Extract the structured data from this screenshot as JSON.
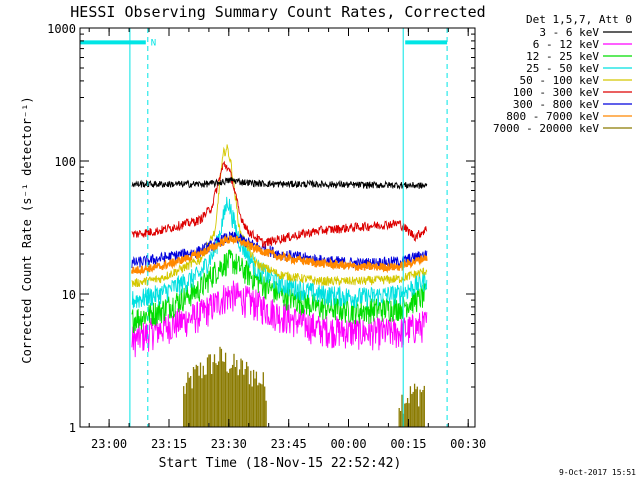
{
  "figure": {
    "title": "HESSI Observing Summary Count Rates, Corrected",
    "footer_date": "9-Oct-2017 15:51"
  },
  "chart_data": {
    "type": "line",
    "title": "HESSI Observing Summary Count Rates, Corrected",
    "xlabel": "Start Time (18-Nov-15 22:52:42)",
    "ylabel": "Corrected Count Rate (s⁻¹ detector⁻¹)",
    "y_scale": "log",
    "ylim": [
      1,
      1000
    ],
    "xlim_minutes_from_start": [
      0,
      99
    ],
    "x_tick_labels": [
      "23:00",
      "23:15",
      "23:30",
      "23:45",
      "00:00",
      "00:15",
      "00:30"
    ],
    "x_tick_minutes_from_start": [
      7.3,
      22.3,
      37.3,
      52.3,
      67.3,
      82.3,
      97.3
    ],
    "y_tick_labels": [
      "1",
      "10",
      "100",
      "1000"
    ],
    "y_tick_values": [
      1,
      10,
      100,
      1000
    ],
    "legend_header": "Det 1,5,7, Att 0",
    "legend_placement": "right",
    "grid": false,
    "series": [
      {
        "name": "3 - 6 keV",
        "color": "#000000",
        "x": [
          13,
          20,
          30,
          34,
          36,
          38,
          40,
          44,
          50,
          60,
          70,
          80,
          87
        ],
        "values": [
          67,
          67,
          67,
          68,
          70,
          72,
          70,
          68,
          67,
          67,
          66,
          66,
          65
        ]
      },
      {
        "name": "6 - 12 keV",
        "color": "#ff00ff",
        "x": [
          13,
          20,
          30,
          34,
          36,
          38,
          40,
          44,
          50,
          60,
          70,
          80,
          87
        ],
        "values": [
          4.5,
          5.5,
          7,
          8.5,
          9.5,
          10,
          9.5,
          8.5,
          7,
          5.5,
          5.2,
          5.2,
          6
        ]
      },
      {
        "name": "12 - 25 keV",
        "color": "#00dd00",
        "x": [
          13,
          20,
          30,
          34,
          36,
          38,
          40,
          44,
          50,
          60,
          70,
          80,
          87
        ],
        "values": [
          6.5,
          7.5,
          11,
          15,
          17,
          18,
          16,
          13,
          10,
          8,
          7.5,
          8,
          10
        ]
      },
      {
        "name": "25 - 50 keV",
        "color": "#00e0e0",
        "x": [
          13,
          20,
          30,
          34,
          36,
          37,
          38,
          40,
          44,
          50,
          60,
          70,
          80,
          87
        ],
        "values": [
          9,
          10,
          14,
          22,
          38,
          52,
          40,
          25,
          16,
          12,
          10,
          9.5,
          10,
          13
        ]
      },
      {
        "name": "50 - 100 keV",
        "color": "#d4c800",
        "x": [
          13,
          20,
          30,
          34,
          35,
          36,
          37,
          38,
          40,
          44,
          50,
          60,
          70,
          80,
          87
        ],
        "values": [
          12,
          13,
          18,
          30,
          70,
          115,
          125,
          90,
          30,
          17,
          14,
          12.5,
          12.5,
          13,
          15
        ]
      },
      {
        "name": "100 - 300 keV",
        "color": "#dd0000",
        "x": [
          13,
          20,
          30,
          33,
          35,
          36,
          37,
          38,
          39,
          40,
          42,
          46,
          50,
          60,
          70,
          80,
          84,
          87
        ],
        "values": [
          28,
          30,
          36,
          45,
          75,
          95,
          90,
          75,
          55,
          40,
          30,
          24,
          26,
          30,
          32,
          34,
          27,
          31
        ]
      },
      {
        "name": "300 - 800 keV",
        "color": "#0000dd",
        "x": [
          13,
          20,
          30,
          34,
          36,
          38,
          40,
          44,
          50,
          60,
          70,
          80,
          87
        ],
        "values": [
          17,
          18.5,
          21,
          24,
          26,
          27,
          26,
          23,
          20,
          18,
          17,
          17.5,
          20
        ]
      },
      {
        "name": "800 - 7000 keV",
        "color": "#ff8800",
        "x": [
          13,
          20,
          30,
          34,
          36,
          38,
          40,
          44,
          50,
          60,
          70,
          80,
          87
        ],
        "values": [
          15,
          16,
          20,
          23,
          25,
          26,
          25,
          22,
          19,
          17,
          16,
          16,
          19
        ]
      },
      {
        "name": "7000 - 20000 keV",
        "color": "#8a7a00",
        "x": [
          26,
          29,
          32,
          35,
          38,
          41,
          44,
          47,
          80,
          83,
          86
        ],
        "values": [
          1.8,
          2.4,
          2.8,
          3.2,
          2.8,
          2.6,
          2.3,
          1.9,
          1.5,
          1.7,
          1.8
        ]
      }
    ],
    "annotations": {
      "vertical_lines_minutes": [
        12.5,
        17,
        81,
        92
      ],
      "bar_segments_minutes": [
        [
          0,
          16.5
        ],
        [
          81.5,
          92
        ]
      ],
      "bar_level": 780,
      "marker_label": "N"
    }
  }
}
